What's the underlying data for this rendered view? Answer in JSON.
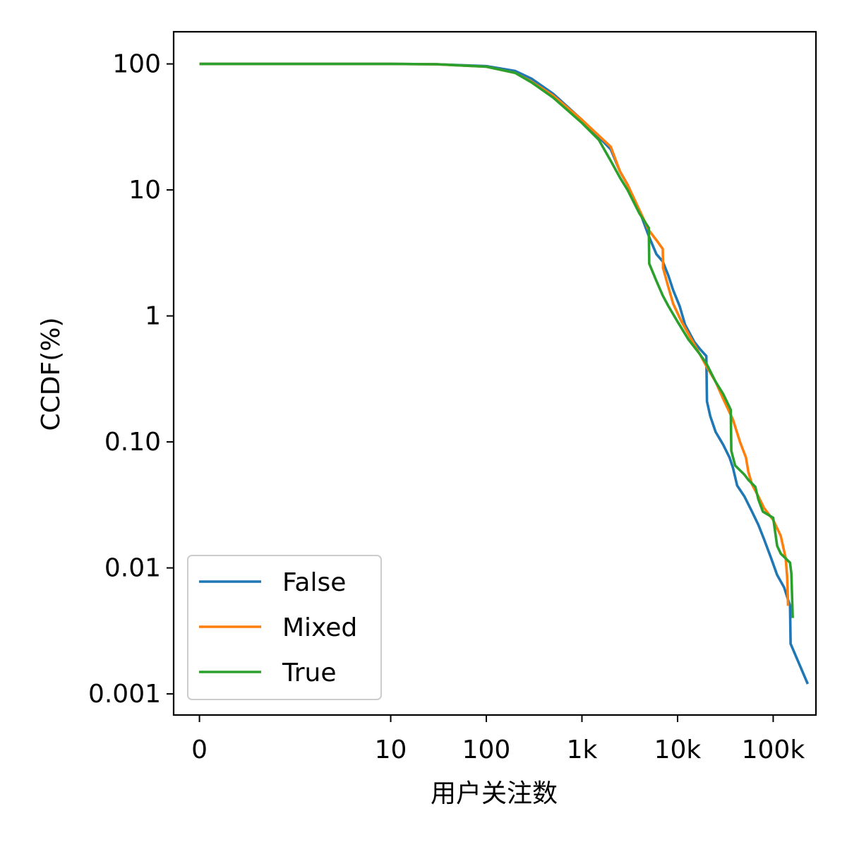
{
  "chart_data": {
    "type": "line",
    "xlabel": "用户关注数",
    "ylabel": "CCDF(%)",
    "xscale": "symlog",
    "yscale": "log",
    "xlim": [
      -0.27,
      280000
    ],
    "ylim": [
      0.00068,
      180
    ],
    "x_ticks": [
      0,
      10,
      100,
      1000,
      10000,
      100000
    ],
    "x_tick_labels": [
      "0",
      "10",
      "100",
      "1k",
      "10k",
      "100k"
    ],
    "y_ticks": [
      100,
      10,
      1,
      0.1,
      0.01,
      0.001
    ],
    "y_tick_labels": [
      "100",
      "10",
      "1",
      "0.10",
      "0.01",
      "0.001"
    ],
    "legend_position": "lower-left",
    "grid": false,
    "series": [
      {
        "name": "False",
        "color": "#1f77b4",
        "points": [
          [
            0,
            100
          ],
          [
            10,
            99.9
          ],
          [
            30,
            99.5
          ],
          [
            100,
            96
          ],
          [
            200,
            88
          ],
          [
            300,
            76
          ],
          [
            500,
            58
          ],
          [
            1000,
            36
          ],
          [
            1600,
            25
          ],
          [
            2000,
            21
          ],
          [
            2500,
            14
          ],
          [
            3000,
            11
          ],
          [
            4000,
            6.8
          ],
          [
            5000,
            4.3
          ],
          [
            6000,
            3.1
          ],
          [
            7000,
            2.7
          ],
          [
            8000,
            2.1
          ],
          [
            9000,
            1.6
          ],
          [
            10500,
            1.2
          ],
          [
            12000,
            0.85
          ],
          [
            15000,
            0.62
          ],
          [
            17000,
            0.55
          ],
          [
            20000,
            0.48
          ],
          [
            20300,
            0.21
          ],
          [
            22000,
            0.16
          ],
          [
            25000,
            0.12
          ],
          [
            30000,
            0.095
          ],
          [
            35000,
            0.075
          ],
          [
            38000,
            0.062
          ],
          [
            42000,
            0.045
          ],
          [
            50000,
            0.037
          ],
          [
            60000,
            0.028
          ],
          [
            70000,
            0.022
          ],
          [
            80000,
            0.017
          ],
          [
            95000,
            0.012
          ],
          [
            110000,
            0.0088
          ],
          [
            130000,
            0.007
          ],
          [
            150000,
            0.005
          ],
          [
            152000,
            0.0025
          ],
          [
            230000,
            0.0012
          ]
        ]
      },
      {
        "name": "Mixed",
        "color": "#ff7f0e",
        "points": [
          [
            0,
            100
          ],
          [
            10,
            99.9
          ],
          [
            30,
            99.3
          ],
          [
            100,
            95
          ],
          [
            200,
            85
          ],
          [
            300,
            72
          ],
          [
            500,
            56
          ],
          [
            1000,
            36
          ],
          [
            1500,
            27
          ],
          [
            2000,
            22
          ],
          [
            2500,
            14
          ],
          [
            3000,
            11
          ],
          [
            4000,
            6.9
          ],
          [
            5000,
            4.8
          ],
          [
            6000,
            4
          ],
          [
            7000,
            3.4
          ],
          [
            7050,
            2.4
          ],
          [
            8000,
            1.7
          ],
          [
            9000,
            1.25
          ],
          [
            11000,
            0.9
          ],
          [
            14000,
            0.65
          ],
          [
            17000,
            0.5
          ],
          [
            20000,
            0.4
          ],
          [
            25000,
            0.3
          ],
          [
            30000,
            0.22
          ],
          [
            38000,
            0.15
          ],
          [
            45000,
            0.1
          ],
          [
            52000,
            0.075
          ],
          [
            55000,
            0.058
          ],
          [
            60000,
            0.046
          ],
          [
            70000,
            0.037
          ],
          [
            80000,
            0.03
          ],
          [
            100000,
            0.024
          ],
          [
            120000,
            0.018
          ],
          [
            135000,
            0.012
          ],
          [
            140000,
            0.0085
          ],
          [
            142000,
            0.006
          ],
          [
            143000,
            0.005
          ]
        ]
      },
      {
        "name": "True",
        "color": "#2ca02c",
        "points": [
          [
            0,
            100
          ],
          [
            10,
            99.9
          ],
          [
            30,
            99.4
          ],
          [
            100,
            95
          ],
          [
            200,
            85
          ],
          [
            300,
            71
          ],
          [
            500,
            54
          ],
          [
            1000,
            34
          ],
          [
            1500,
            25
          ],
          [
            2000,
            17
          ],
          [
            2500,
            12.5
          ],
          [
            3000,
            10
          ],
          [
            4000,
            6.5
          ],
          [
            5000,
            5
          ],
          [
            5050,
            2.6
          ],
          [
            6000,
            1.9
          ],
          [
            7000,
            1.45
          ],
          [
            8000,
            1.2
          ],
          [
            10000,
            0.9
          ],
          [
            13000,
            0.65
          ],
          [
            17000,
            0.5
          ],
          [
            20000,
            0.42
          ],
          [
            25000,
            0.3
          ],
          [
            30000,
            0.24
          ],
          [
            36000,
            0.18
          ],
          [
            36500,
            0.085
          ],
          [
            40000,
            0.065
          ],
          [
            50000,
            0.055
          ],
          [
            55000,
            0.05
          ],
          [
            65000,
            0.044
          ],
          [
            70000,
            0.035
          ],
          [
            78000,
            0.028
          ],
          [
            100000,
            0.025
          ],
          [
            110000,
            0.015
          ],
          [
            120000,
            0.013
          ],
          [
            150000,
            0.011
          ],
          [
            155000,
            0.009
          ],
          [
            160000,
            0.004
          ]
        ]
      }
    ]
  }
}
